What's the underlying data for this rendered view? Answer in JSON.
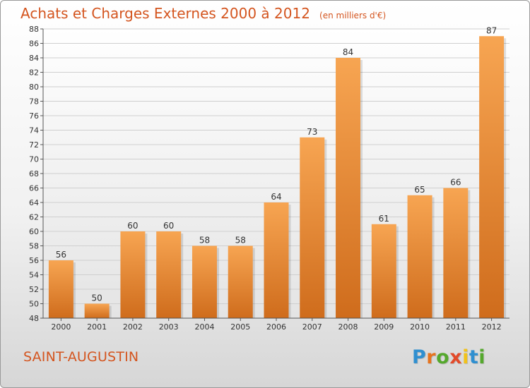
{
  "header": {
    "title": "Achats et Charges Externes 2000 à 2012",
    "unit": "(en milliers d'€)"
  },
  "footer": {
    "commune": "SAINT-AUGUSTIN",
    "logo_text": "Proxiti",
    "logo_colors": [
      "#2f8fd0",
      "#e6741e",
      "#55a82d",
      "#e24a2a",
      "#f1c21b",
      "#2f8fd0",
      "#55a82d"
    ]
  },
  "colors": {
    "accent": "#d4551f",
    "bar_top": "#f7a552",
    "bar_bottom": "#cf6c1c"
  },
  "chart_data": {
    "type": "bar",
    "title": "Achats et Charges Externes 2000 à 2012",
    "subtitle": "(en milliers d'€)",
    "categories": [
      "2000",
      "2001",
      "2002",
      "2003",
      "2004",
      "2005",
      "2006",
      "2007",
      "2008",
      "2009",
      "2010",
      "2011",
      "2012"
    ],
    "values": [
      56,
      50,
      60,
      60,
      58,
      58,
      64,
      73,
      84,
      61,
      65,
      66,
      87
    ],
    "ylim": [
      48,
      88
    ],
    "yticks": [
      48,
      50,
      52,
      54,
      56,
      58,
      60,
      62,
      64,
      66,
      68,
      70,
      72,
      74,
      76,
      78,
      80,
      82,
      84,
      86,
      88
    ],
    "grid": true,
    "data_labels": true
  }
}
